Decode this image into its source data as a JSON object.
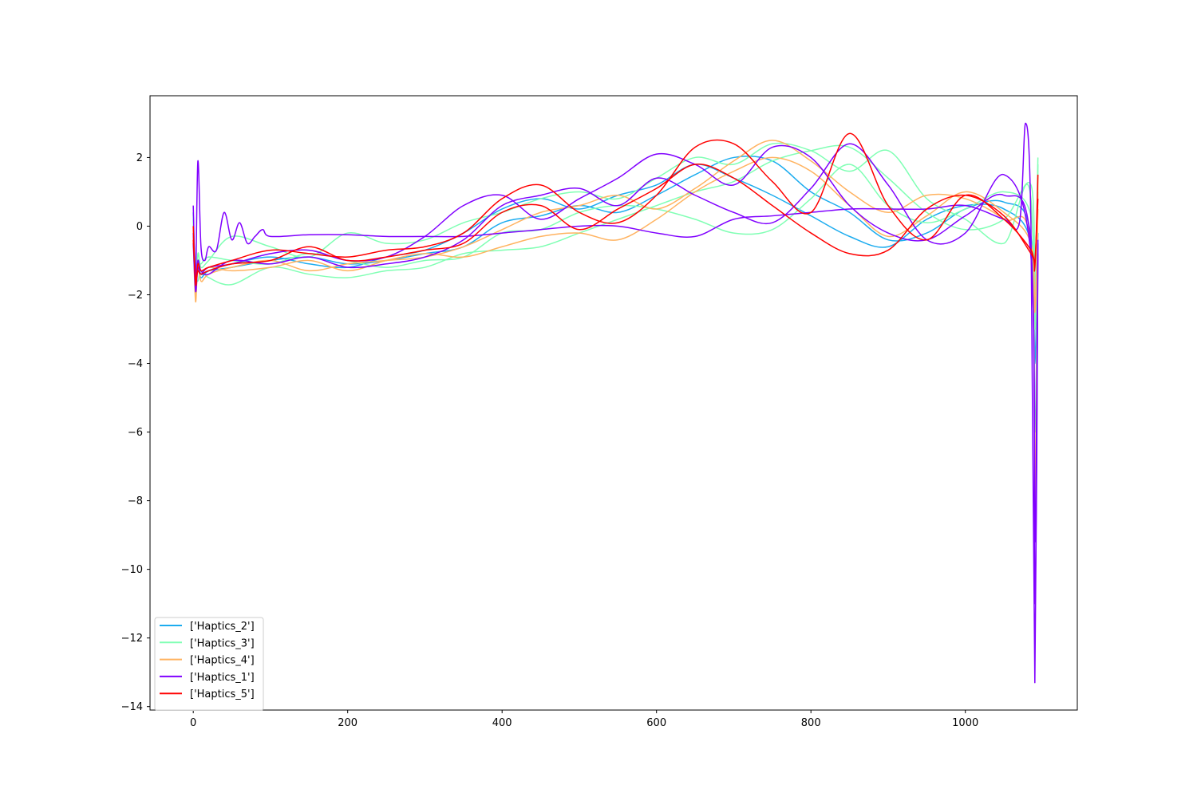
{
  "chart_data": {
    "type": "line",
    "title": "",
    "xlabel": "",
    "ylabel": "",
    "xlim": [
      -56,
      1145
    ],
    "ylim": [
      -14.1,
      3.8
    ],
    "xticks": [
      0,
      200,
      400,
      600,
      800,
      1000
    ],
    "yticks": [
      2,
      0,
      -2,
      -4,
      -6,
      -8,
      -10,
      -12,
      -14
    ],
    "xtick_labels": [
      "0",
      "200",
      "400",
      "600",
      "800",
      "1000"
    ],
    "ytick_labels": [
      "2",
      "0",
      "−2",
      "−4",
      "−6",
      "−8",
      "−10",
      "−12",
      "−14"
    ],
    "grid": false,
    "legend_position": "lower-left",
    "legend": [
      {
        "label": "['Haptics_2']",
        "color": "#1cacef"
      },
      {
        "label": "['Haptics_3']",
        "color": "#80ffb4"
      },
      {
        "label": "['Haptics_4']",
        "color": "#ffb360"
      },
      {
        "label": "['Haptics_1']",
        "color": "#8000ff"
      },
      {
        "label": "['Haptics_5']",
        "color": "#ff0000"
      }
    ],
    "series": [
      {
        "name": "['Haptics_2']",
        "color": "#1cacef",
        "x": [
          0,
          3,
          6,
          10,
          20,
          50,
          100,
          150,
          200,
          250,
          300,
          350,
          400,
          450,
          500,
          550,
          600,
          650,
          700,
          750,
          800,
          850,
          900,
          950,
          1000,
          1050,
          1085,
          1090,
          1094
        ],
        "y": [
          0.4,
          -1.8,
          -1.0,
          -1.4,
          -1.3,
          -1.2,
          -1.0,
          -0.9,
          -1.1,
          -1.0,
          -0.8,
          -0.6,
          0.1,
          0.3,
          0.6,
          0.4,
          0.9,
          1.5,
          2.0,
          1.9,
          1.0,
          0.4,
          -0.4,
          -0.2,
          0.5,
          0.7,
          -0.3,
          -6.0,
          -0.5
        ]
      },
      {
        "name": "['Haptics_2']",
        "color": "#1cacef",
        "x": [
          0,
          3,
          6,
          10,
          20,
          50,
          100,
          150,
          200,
          250,
          300,
          350,
          400,
          450,
          500,
          550,
          600,
          650,
          700,
          750,
          800,
          850,
          900,
          950,
          1000,
          1050,
          1085,
          1090,
          1094
        ],
        "y": [
          0.2,
          -1.6,
          -1.2,
          -1.5,
          -1.3,
          -1.1,
          -0.9,
          -1.1,
          -1.2,
          -0.9,
          -0.7,
          -0.2,
          0.5,
          0.8,
          0.5,
          0.9,
          1.2,
          1.8,
          1.4,
          0.9,
          0.3,
          -0.3,
          -0.6,
          0.2,
          0.6,
          0.5,
          -0.5,
          -4.0,
          -0.2
        ]
      },
      {
        "name": "['Haptics_3']",
        "color": "#80ffb4",
        "x": [
          0,
          3,
          6,
          10,
          20,
          50,
          100,
          150,
          200,
          250,
          300,
          350,
          400,
          450,
          500,
          550,
          600,
          650,
          700,
          750,
          800,
          850,
          900,
          950,
          1000,
          1050,
          1085,
          1090,
          1094
        ],
        "y": [
          0.3,
          -2.0,
          -0.8,
          -1.2,
          -1.0,
          -0.3,
          -0.6,
          -0.9,
          -0.2,
          -0.5,
          -0.4,
          0.1,
          0.4,
          0.8,
          1.0,
          0.8,
          1.4,
          2.0,
          1.8,
          2.4,
          2.2,
          1.6,
          2.2,
          0.8,
          0.2,
          -0.5,
          0.8,
          -9.0,
          1.8
        ]
      },
      {
        "name": "['Haptics_3']",
        "color": "#80ffb4",
        "x": [
          0,
          3,
          6,
          10,
          20,
          50,
          100,
          150,
          200,
          250,
          300,
          350,
          400,
          450,
          500,
          550,
          600,
          650,
          700,
          750,
          800,
          850,
          900,
          950,
          1000,
          1050,
          1085,
          1090,
          1094
        ],
        "y": [
          -0.5,
          -1.4,
          -1.6,
          -1.3,
          -1.5,
          -1.7,
          -1.2,
          -1.4,
          -1.5,
          -1.3,
          -1.2,
          -0.8,
          -0.7,
          -0.6,
          -0.2,
          0.2,
          0.6,
          1.0,
          1.3,
          1.9,
          2.2,
          2.3,
          1.4,
          0.4,
          -0.1,
          0.2,
          1.2,
          -2.0,
          2.0
        ]
      },
      {
        "name": "['Haptics_3']",
        "color": "#80ffb4",
        "x": [
          0,
          3,
          6,
          10,
          20,
          50,
          100,
          150,
          200,
          250,
          300,
          350,
          400,
          450,
          500,
          550,
          600,
          650,
          700,
          750,
          800,
          850,
          900,
          950,
          1000,
          1050,
          1085,
          1090,
          1094
        ],
        "y": [
          0.1,
          -1.2,
          -1.0,
          -1.1,
          -0.9,
          -1.0,
          -1.1,
          -0.8,
          -1.0,
          -1.2,
          -1.0,
          -0.9,
          -0.2,
          -0.1,
          0.4,
          0.6,
          0.5,
          0.2,
          -0.2,
          -0.1,
          0.8,
          1.8,
          0.6,
          0.1,
          0.5,
          1.0,
          0.3,
          -3.0,
          1.0
        ]
      },
      {
        "name": "['Haptics_4']",
        "color": "#ffb360",
        "x": [
          0,
          3,
          6,
          10,
          20,
          50,
          100,
          150,
          200,
          250,
          300,
          350,
          400,
          450,
          500,
          550,
          600,
          650,
          700,
          750,
          800,
          850,
          900,
          950,
          1000,
          1050,
          1085,
          1090,
          1094
        ],
        "y": [
          -0.3,
          -2.2,
          -1.0,
          -1.6,
          -1.4,
          -1.2,
          -1.0,
          -1.3,
          -1.1,
          -1.0,
          -0.9,
          -0.6,
          -0.1,
          0.4,
          0.6,
          0.9,
          0.5,
          1.1,
          1.9,
          2.5,
          1.9,
          1.0,
          0.4,
          0.9,
          0.8,
          0.2,
          -0.6,
          -8.9,
          1.5
        ]
      },
      {
        "name": "['Haptics_4']",
        "color": "#ffb360",
        "x": [
          0,
          3,
          6,
          10,
          20,
          50,
          100,
          150,
          200,
          250,
          300,
          350,
          400,
          450,
          500,
          550,
          600,
          650,
          700,
          750,
          800,
          850,
          900,
          950,
          1000,
          1050,
          1085,
          1090,
          1094
        ],
        "y": [
          0.0,
          -1.6,
          -1.3,
          -1.4,
          -1.2,
          -1.3,
          -1.2,
          -1.0,
          -1.3,
          -1.0,
          -0.8,
          -0.9,
          -0.6,
          -0.3,
          -0.2,
          -0.4,
          0.2,
          1.0,
          1.6,
          2.0,
          1.6,
          0.6,
          -0.3,
          0.3,
          1.0,
          0.4,
          -0.5,
          -2.5,
          0.5
        ]
      },
      {
        "name": "['Haptics_1']",
        "color": "#8000ff",
        "x": [
          0,
          3,
          6,
          10,
          15,
          20,
          30,
          40,
          50,
          60,
          70,
          80,
          90,
          100,
          150,
          200,
          250,
          300,
          350,
          400,
          450,
          500,
          550,
          600,
          650,
          700,
          750,
          800,
          850,
          900,
          950,
          1000,
          1050,
          1070,
          1078,
          1085,
          1090,
          1094
        ],
        "y": [
          0.6,
          -1.5,
          1.9,
          -0.6,
          -1.0,
          -0.6,
          -0.7,
          0.4,
          -0.4,
          0.1,
          -0.5,
          -0.3,
          -0.1,
          -0.3,
          -0.25,
          -0.25,
          -0.3,
          -0.3,
          -0.3,
          -0.2,
          -0.1,
          0.0,
          0.0,
          -0.2,
          -0.3,
          0.2,
          0.3,
          0.4,
          0.5,
          0.5,
          0.5,
          0.6,
          0.2,
          0.1,
          3.0,
          0.0,
          -13.3,
          -0.5
        ]
      },
      {
        "name": "['Haptics_1']",
        "color": "#8000ff",
        "x": [
          0,
          3,
          6,
          10,
          20,
          50,
          100,
          150,
          200,
          250,
          300,
          350,
          400,
          450,
          500,
          550,
          600,
          650,
          700,
          750,
          800,
          850,
          900,
          950,
          1000,
          1050,
          1085,
          1090,
          1094
        ],
        "y": [
          -0.5,
          -1.9,
          -1.2,
          -1.4,
          -1.2,
          -1.1,
          -0.8,
          -0.7,
          -1.0,
          -0.9,
          -0.3,
          0.6,
          0.9,
          0.2,
          0.8,
          1.4,
          2.1,
          1.8,
          1.2,
          2.3,
          2.0,
          0.6,
          -0.2,
          -0.4,
          0.3,
          0.9,
          -0.6,
          -11.0,
          -0.8
        ]
      },
      {
        "name": "['Haptics_1']",
        "color": "#8000ff",
        "x": [
          0,
          3,
          6,
          10,
          20,
          50,
          100,
          150,
          200,
          250,
          300,
          350,
          400,
          450,
          500,
          550,
          600,
          650,
          700,
          750,
          800,
          850,
          900,
          950,
          1000,
          1050,
          1085,
          1090,
          1094
        ],
        "y": [
          -0.2,
          -1.7,
          -1.0,
          -1.3,
          -1.4,
          -1.0,
          -1.1,
          -0.9,
          -1.2,
          -1.1,
          -0.9,
          -0.4,
          0.6,
          0.9,
          1.1,
          0.6,
          1.4,
          0.9,
          0.4,
          0.1,
          1.1,
          2.4,
          1.2,
          -0.4,
          -0.2,
          1.5,
          -0.9,
          -9.2,
          -0.4
        ]
      },
      {
        "name": "['Haptics_5']",
        "color": "#ff0000",
        "x": [
          0,
          3,
          6,
          10,
          20,
          50,
          100,
          150,
          200,
          250,
          300,
          350,
          400,
          450,
          500,
          550,
          600,
          650,
          700,
          750,
          800,
          850,
          900,
          950,
          1000,
          1050,
          1085,
          1090,
          1094
        ],
        "y": [
          0.0,
          -1.7,
          -1.1,
          -1.3,
          -1.2,
          -1.0,
          -0.7,
          -0.8,
          -0.9,
          -0.7,
          -0.6,
          -0.2,
          0.8,
          1.2,
          0.4,
          0.1,
          0.9,
          2.3,
          2.4,
          1.3,
          0.4,
          2.7,
          0.6,
          -0.4,
          0.9,
          0.2,
          -0.7,
          -1.2,
          1.5
        ]
      },
      {
        "name": "['Haptics_5']",
        "color": "#ff0000",
        "x": [
          0,
          3,
          6,
          10,
          20,
          50,
          100,
          150,
          200,
          250,
          300,
          350,
          400,
          450,
          500,
          550,
          600,
          650,
          700,
          750,
          800,
          850,
          900,
          950,
          1000,
          1050,
          1085,
          1090,
          1094
        ],
        "y": [
          -0.4,
          -1.5,
          -1.3,
          -1.4,
          -1.3,
          -1.1,
          -1.0,
          -0.6,
          -1.0,
          -0.9,
          -0.7,
          -0.5,
          0.4,
          0.6,
          -0.1,
          0.5,
          1.1,
          1.8,
          1.4,
          0.6,
          -0.2,
          -0.8,
          -0.7,
          0.5,
          0.9,
          0.3,
          -0.8,
          -1.0,
          0.8
        ]
      }
    ]
  }
}
